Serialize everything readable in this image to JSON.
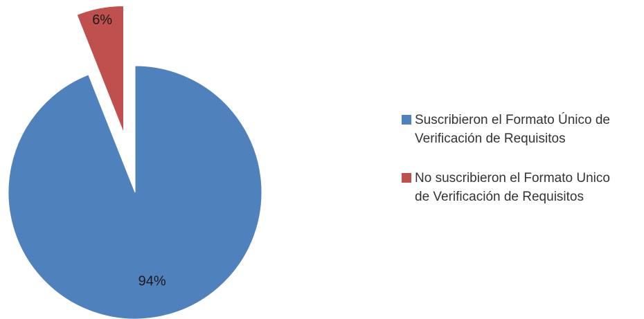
{
  "chart_data": {
    "type": "pie",
    "title": "",
    "legend_position": "right",
    "slices": [
      {
        "name": "Suscribieron el Formato Único de Verificación de Requisitos",
        "value": 94,
        "label": "94%",
        "color": "#4F81BD",
        "exploded": false
      },
      {
        "name": "No suscribieron el Formato Unico de Verificación de Requisitos",
        "value": 6,
        "label": "6%",
        "color": "#C0504D",
        "exploded": true
      }
    ]
  }
}
